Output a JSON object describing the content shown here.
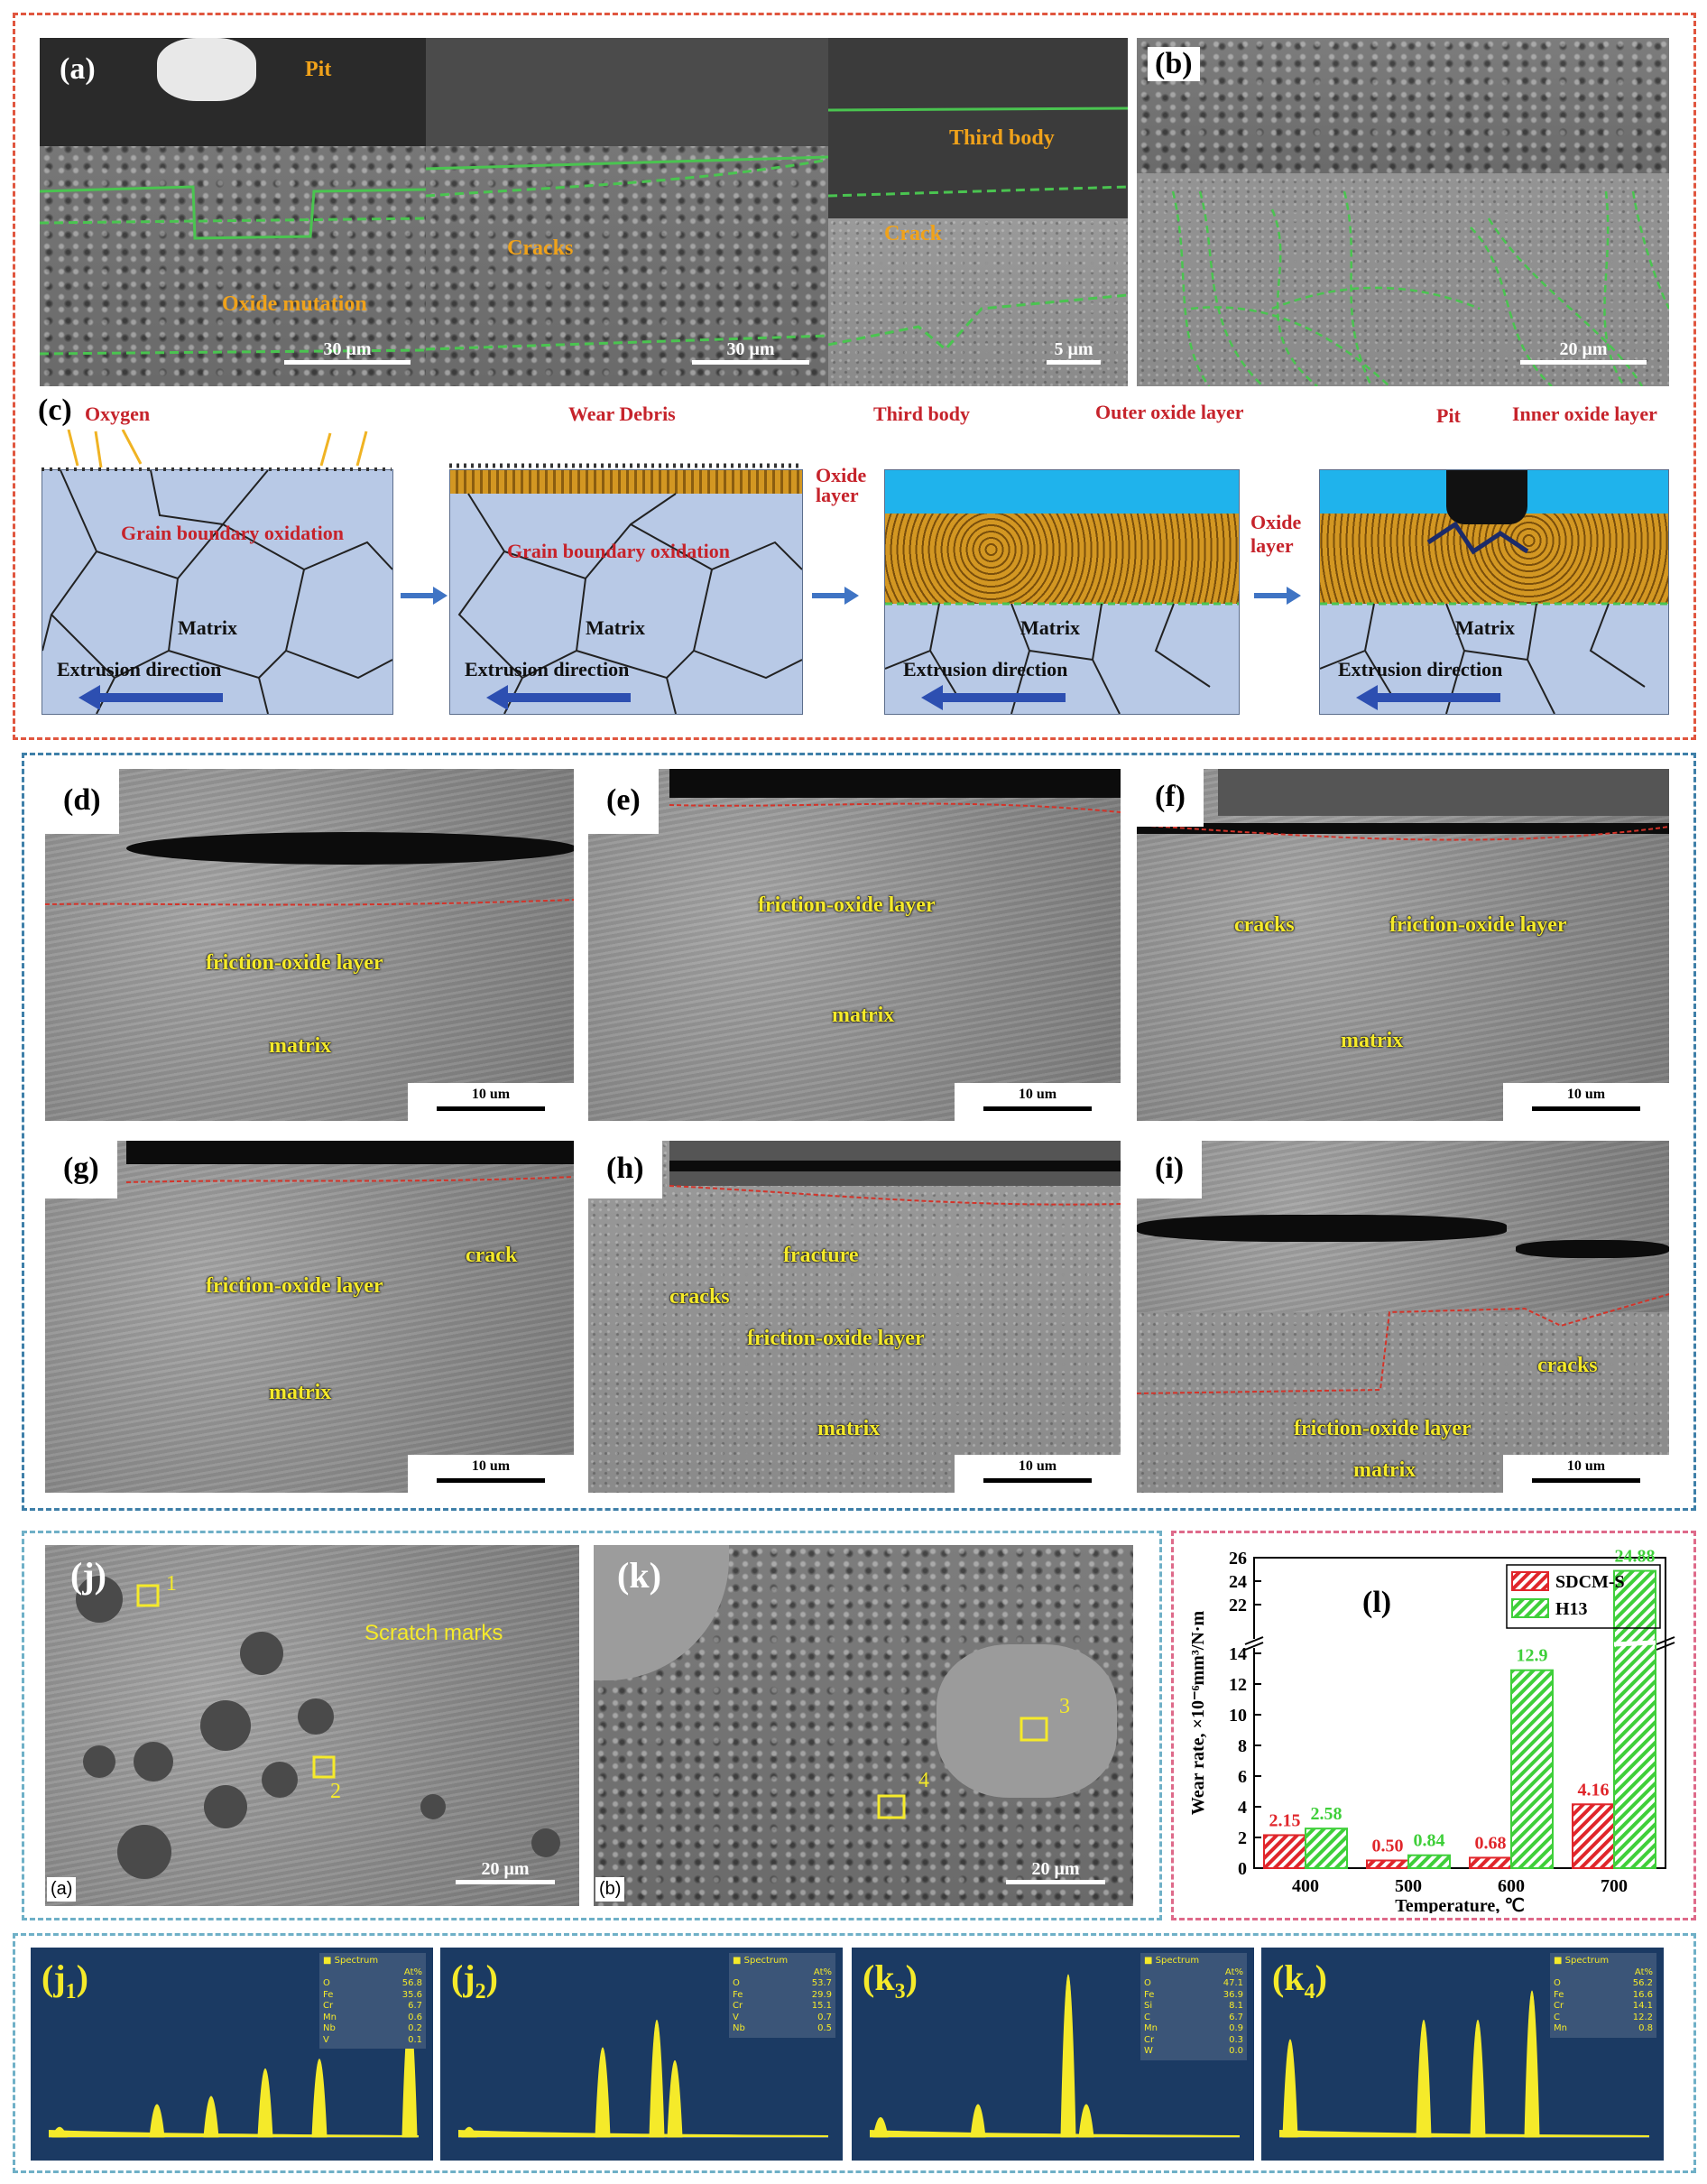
{
  "top_panel": {
    "a": {
      "label": "(a)",
      "annotations": [
        "Pit",
        "Cracks",
        "Oxide mutation",
        "Third body",
        "Crack"
      ],
      "scales": [
        "30 μm",
        "30 μm",
        "5 μm"
      ]
    },
    "b": {
      "label": "(b)",
      "scale": "20 μm"
    },
    "c": {
      "label": "(c)",
      "step1": {
        "oxygen": "Oxygen",
        "gbo": "Grain boundary oxidation",
        "matrix": "Matrix",
        "extrusion": "Extrusion direction"
      },
      "step2": {
        "debris": "Wear Debris",
        "oxide_layer": "Oxide layer",
        "gbo": "Grain boundary oxidation",
        "matrix": "Matrix",
        "extrusion": "Extrusion direction"
      },
      "step3": {
        "third_body": "Third body",
        "outer": "Outer oxide layer",
        "oxide_layer": "Oxide layer",
        "matrix": "Matrix",
        "extrusion": "Extrusion direction"
      },
      "step4": {
        "pit": "Pit",
        "inner": "Inner oxide layer",
        "matrix": "Matrix",
        "extrusion": "Extrusion direction"
      }
    }
  },
  "middle_panel": {
    "d": {
      "label": "(d)",
      "ann": [
        "friction-oxide layer",
        "matrix"
      ],
      "scale": "10 um"
    },
    "e": {
      "label": "(e)",
      "ann": [
        "friction-oxide layer",
        "matrix"
      ],
      "scale": "10 um"
    },
    "f": {
      "label": "(f)",
      "ann": [
        "cracks",
        "friction-oxide layer",
        "matrix"
      ],
      "scale": "10 um"
    },
    "g": {
      "label": "(g)",
      "ann": [
        "friction-oxide layer",
        "crack",
        "matrix"
      ],
      "scale": "10 um"
    },
    "h": {
      "label": "(h)",
      "ann": [
        "fracture",
        "cracks",
        "friction-oxide layer",
        "matrix"
      ],
      "scale": "10 um"
    },
    "i": {
      "label": "(i)",
      "ann": [
        "cracks",
        "friction-oxide layer",
        "matrix"
      ],
      "scale": "10 um"
    }
  },
  "bottom_left": {
    "j": {
      "label": "(j)",
      "sub": "(a)",
      "ann": "Scratch marks",
      "pts": [
        "1",
        "2"
      ],
      "scale": "20 μm"
    },
    "k": {
      "label": "(k)",
      "sub": "(b)",
      "pts": [
        "3",
        "4"
      ],
      "scale": "20 μm"
    }
  },
  "chart_label": "(l)",
  "chart_data": {
    "type": "bar",
    "categories": [
      "400",
      "500",
      "600",
      "700"
    ],
    "series": [
      {
        "name": "SDCM-S",
        "values": [
          2.15,
          0.5,
          0.68,
          4.16
        ],
        "labels": [
          "2.15",
          "0.50",
          "0.68",
          "4.16"
        ],
        "color": "#e0262b"
      },
      {
        "name": "H13",
        "values": [
          2.58,
          0.84,
          12.9,
          24.88
        ],
        "labels": [
          "2.58",
          "0.84",
          "12.9",
          "24.88"
        ],
        "color": "#3fcf3a"
      }
    ],
    "xlabel": "Temperature, ℃",
    "ylabel": "Wear rate, ×10⁻⁶mm³/N·m",
    "y_ticks_lower": [
      "0",
      "2",
      "4",
      "6",
      "8",
      "10",
      "12",
      "14"
    ],
    "y_ticks_upper": [
      "22",
      "24",
      "26"
    ],
    "axis_break": "14 to 20"
  },
  "eds": [
    {
      "tag": "j",
      "sub": "1",
      "title": "Spectrum",
      "unit": "At%",
      "rows": [
        [
          "O",
          "56.8"
        ],
        [
          "Fe",
          "35.6"
        ],
        [
          "Cr",
          "6.7"
        ],
        [
          "Mn",
          "0.6"
        ],
        [
          "Nb",
          "0.2"
        ],
        [
          "V",
          "0.1"
        ]
      ],
      "peaks": [
        [
          "O",
          0.06
        ],
        [
          "Cr",
          0.2
        ],
        [
          "Mn",
          0.25
        ],
        [
          "Fe",
          0.42
        ],
        [
          "Fe",
          0.48
        ],
        [
          "Nb",
          0.78
        ]
      ]
    },
    {
      "tag": "j",
      "sub": "2",
      "title": "Spectrum",
      "unit": "At%",
      "rows": [
        [
          "O",
          "53.7"
        ],
        [
          "Fe",
          "29.9"
        ],
        [
          "Cr",
          "15.1"
        ],
        [
          "V",
          "0.7"
        ],
        [
          "Nb",
          "0.5"
        ]
      ],
      "peaks": [
        [
          "O",
          0.06
        ],
        [
          "Cr",
          0.55
        ],
        [
          "Fe",
          0.72
        ],
        [
          "Fe",
          0.47
        ]
      ]
    },
    {
      "tag": "k",
      "sub": "3",
      "title": "Spectrum",
      "unit": "At%",
      "rows": [
        [
          "O",
          "47.1"
        ],
        [
          "Fe",
          "36.9"
        ],
        [
          "Si",
          "8.1"
        ],
        [
          "C",
          "6.7"
        ],
        [
          "Mn",
          "0.9"
        ],
        [
          "Cr",
          "0.3"
        ],
        [
          "W",
          "0.0"
        ]
      ],
      "peaks": [
        [
          "O",
          0.12
        ],
        [
          "Cr",
          0.2
        ],
        [
          "Fe",
          1.0
        ],
        [
          "Fe",
          0.2
        ]
      ]
    },
    {
      "tag": "k",
      "sub": "4",
      "title": "Spectrum",
      "unit": "At%",
      "rows": [
        [
          "O",
          "56.2"
        ],
        [
          "Fe",
          "16.6"
        ],
        [
          "Cr",
          "14.1"
        ],
        [
          "C",
          "12.2"
        ],
        [
          "Mn",
          "0.8"
        ]
      ],
      "peaks": [
        [
          "O",
          0.6
        ],
        [
          "Cr",
          0.72
        ],
        [
          "Mn",
          0.72
        ],
        [
          "Fe",
          0.9
        ]
      ]
    }
  ],
  "colors": {
    "frame_red": "#e0563f",
    "frame_blue": "#3e7fa8",
    "frame_cyan": "#6fb0c7",
    "frame_pink": "#de6a8a",
    "oxide_orange": "#d39722",
    "outer_blue": "#1fb3ec"
  }
}
